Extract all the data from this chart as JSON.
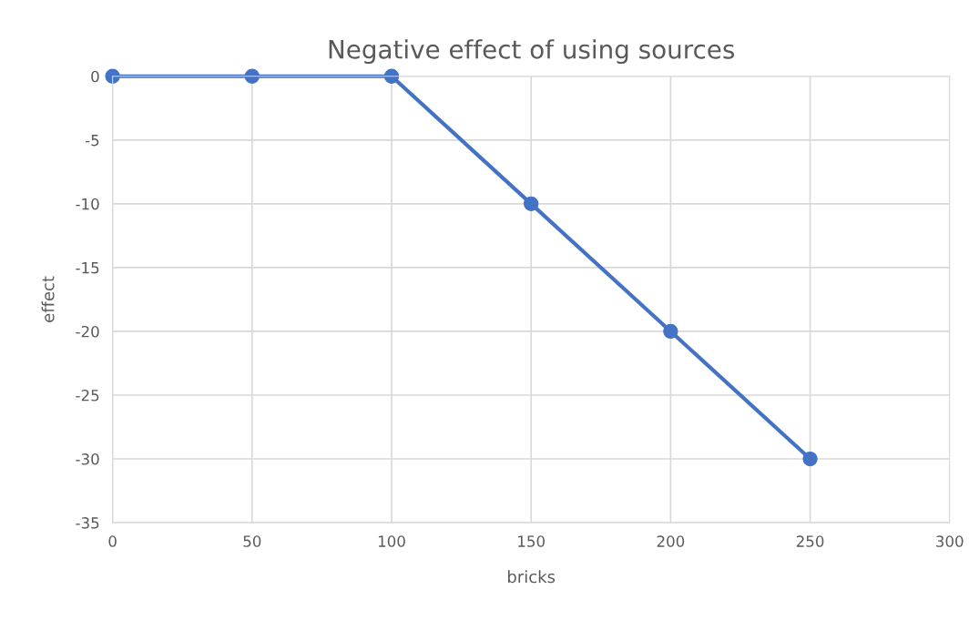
{
  "chart_data": {
    "type": "line",
    "title": "Negative effect of using sources",
    "xlabel": "bricks",
    "ylabel": "effect",
    "x": [
      0,
      50,
      100,
      150,
      200,
      250
    ],
    "series": [
      {
        "color": "#4472c4",
        "values": [
          0,
          0,
          0,
          -10,
          -20,
          -30
        ]
      }
    ],
    "xlim": [
      0,
      300
    ],
    "xticks": [
      0,
      50,
      100,
      150,
      200,
      250,
      300
    ],
    "ylim": [
      -35,
      0
    ],
    "yticks": [
      -35,
      -30,
      -25,
      -20,
      -15,
      -10,
      -5,
      0
    ],
    "grid": true,
    "marker": "circle",
    "line_style": "solid"
  }
}
